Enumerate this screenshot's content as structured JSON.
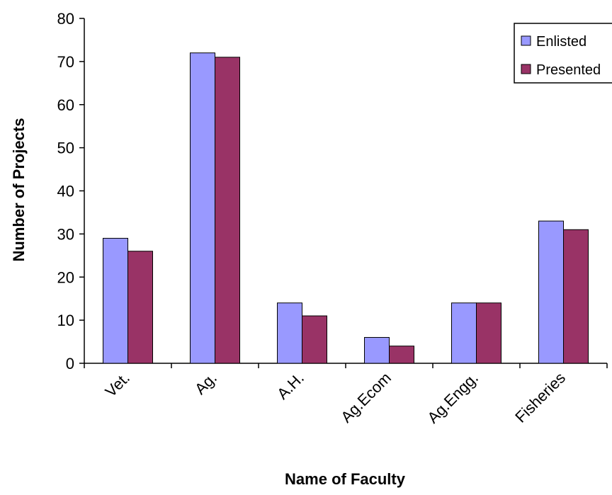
{
  "chart_data": {
    "type": "bar",
    "title": "",
    "xlabel": "Name of Faculty",
    "ylabel": "Number of Projects",
    "categories": [
      "Vet.",
      "Ag.",
      "A.H.",
      "Ag.Ecom",
      "Ag.Engg.",
      "Fisheries"
    ],
    "series": [
      {
        "name": "Enlisted",
        "values": [
          29,
          72,
          14,
          6,
          14,
          33
        ],
        "color": "#9999ff"
      },
      {
        "name": "Presented",
        "values": [
          26,
          71,
          11,
          4,
          14,
          31
        ],
        "color": "#993366"
      }
    ],
    "ylim": [
      0,
      80
    ],
    "yticks": [
      0,
      10,
      20,
      30,
      40,
      50,
      60,
      70,
      80
    ],
    "grid": false,
    "legend_position": "top-right"
  }
}
